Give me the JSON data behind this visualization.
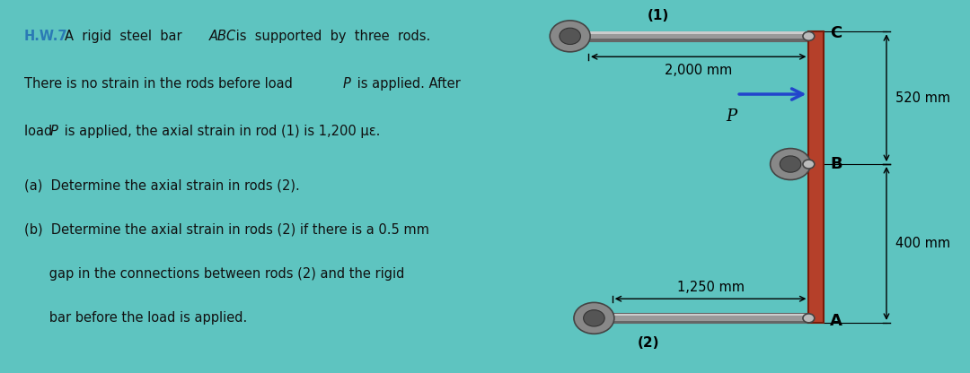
{
  "bg_teal": "#5ec4c0",
  "bg_white": "#ffffff",
  "hw_color": "#2a7ab5",
  "bar_color": "#b5402a",
  "bar_edge": "#7a1a08",
  "rod_mid": "#999999",
  "rod_light": "#cccccc",
  "rod_dark": "#666666",
  "anchor_outer": "#888888",
  "anchor_inner": "#555555",
  "bolt_color": "#bbbbbb",
  "arrow_color": "#2244cc",
  "dim_color": "#222222",
  "text_color": "#111111",
  "label_1": "(1)",
  "label_2": "(2)",
  "label_2000": "2,000 mm",
  "label_1250": "1,250 mm",
  "label_520": "520 mm",
  "label_400": "400 mm",
  "label_C": "C",
  "label_B": "B",
  "label_A": "A",
  "label_P": "P",
  "hw_text": "H.W.7",
  "text_line1a": "A  rigid  steel  bar ",
  "text_line1b": "ABC",
  "text_line1c": " is  supported  by  three  rods.",
  "text_line2a": "There is no strain in the rods before load ",
  "text_line2b": "P",
  "text_line2c": " is applied. After",
  "text_line3a": "load ",
  "text_line3b": "P",
  "text_line3c": " is applied, the axial strain in rod (1) is 1,200 με.",
  "text_line4": "(a)  Determine the axial strain in rods (2).",
  "text_line5": "(b)  Determine the axial strain in rods (2) if there is a 0.5 mm",
  "text_line6": "      gap in the connections between rods (2) and the rigid",
  "text_line7": "      bar before the load is applied."
}
